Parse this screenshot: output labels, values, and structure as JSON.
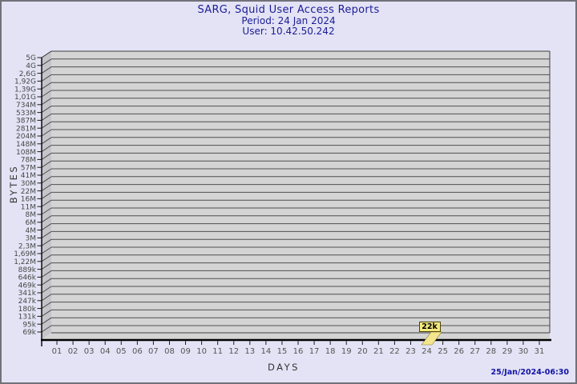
{
  "window": {
    "background": "#e3e3f5",
    "border_color": "#71717a"
  },
  "footer": {
    "generated": "25/Jan/2024-06:30",
    "color": "#1212a8"
  },
  "chart_data": {
    "type": "bar",
    "projection": "3d",
    "title": "SARG, Squid User Access Reports",
    "subtitle1": "Period: 24 Jan 2024",
    "subtitle2": "User: 10.42.50.242",
    "xlabel": "DAYS",
    "ylabel": "BYTES",
    "y_scale": "logarithmic",
    "grid": true,
    "legend": "none",
    "categories": [
      "01",
      "02",
      "03",
      "04",
      "05",
      "06",
      "07",
      "08",
      "09",
      "10",
      "11",
      "12",
      "13",
      "14",
      "15",
      "16",
      "17",
      "18",
      "19",
      "20",
      "21",
      "22",
      "23",
      "24",
      "25",
      "26",
      "27",
      "28",
      "29",
      "30",
      "31"
    ],
    "values": [
      0,
      0,
      0,
      0,
      0,
      0,
      0,
      0,
      0,
      0,
      0,
      0,
      0,
      0,
      0,
      0,
      0,
      0,
      0,
      0,
      0,
      0,
      0,
      22000,
      0,
      0,
      0,
      0,
      0,
      0,
      0
    ],
    "value_unit": "bytes",
    "annotations": [
      {
        "category": "24",
        "label": "22k",
        "value": 22000
      }
    ],
    "y_tick_labels": [
      "5G",
      "4G",
      "2,6G",
      "1,92G",
      "1,39G",
      "1,01G",
      "734M",
      "533M",
      "387M",
      "281M",
      "204M",
      "148M",
      "108M",
      "78M",
      "57M",
      "41M",
      "30M",
      "22M",
      "16M",
      "11M",
      "8M",
      "6M",
      "4M",
      "3M",
      "2,3M",
      "1,69M",
      "1,22M",
      "889k",
      "646k",
      "469k",
      "341k",
      "247k",
      "180k",
      "131k",
      "95k",
      "69k"
    ],
    "colors": {
      "plot_bg": "#d4d4d4",
      "wall_bg": "#c5c5c9",
      "gridline": "#4f4f4f",
      "edge": "#3f3f3f",
      "axis": "#000000",
      "tick": "#1a1a1a",
      "y_tick_text": "#474747",
      "x_tick_text": "#555555",
      "bar_fill": "#f2e58d",
      "bar_edge": "#8a7d2e",
      "annotation_bg": "#f5e97e",
      "annotation_border": "#4a4506",
      "title_color": "#1c1c96"
    }
  }
}
